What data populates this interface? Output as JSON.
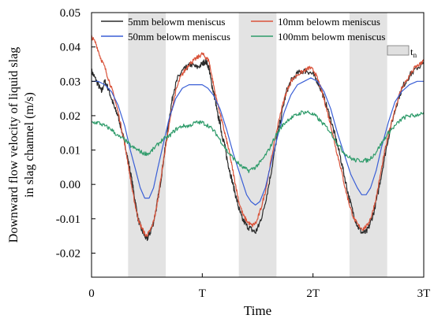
{
  "chart_data": {
    "type": "line",
    "xlabel": "Time",
    "ylabel_line1": "Downward flow velocity of liquid slag",
    "ylabel_line2": "in slag channel (m/s)",
    "x_ticks": [
      "0",
      "T",
      "2T",
      "3T"
    ],
    "y_ticks": [
      "-0.02",
      "-0.01",
      "0.00",
      "0.01",
      "0.02",
      "0.03",
      "0.04",
      "0.05"
    ],
    "xlim": [
      0,
      3
    ],
    "ylim": [
      -0.027,
      0.05
    ],
    "grid": false,
    "legend_position": "top",
    "shaded_label": "t",
    "shaded_label_sub": "n",
    "shaded_bands": [
      [
        0.33,
        0.67
      ],
      [
        1.33,
        1.67
      ],
      [
        2.33,
        2.67
      ]
    ],
    "series": [
      {
        "name": "5mm belowm meniscus",
        "color": "#2b2b2b",
        "points": [
          [
            0.0,
            0.033
          ],
          [
            0.03,
            0.031
          ],
          [
            0.06,
            0.029
          ],
          [
            0.09,
            0.027
          ],
          [
            0.12,
            0.03
          ],
          [
            0.15,
            0.028
          ],
          [
            0.18,
            0.025
          ],
          [
            0.21,
            0.022
          ],
          [
            0.24,
            0.02
          ],
          [
            0.27,
            0.016
          ],
          [
            0.3,
            0.012
          ],
          [
            0.33,
            0.007
          ],
          [
            0.36,
            0.002
          ],
          [
            0.39,
            -0.004
          ],
          [
            0.42,
            -0.01
          ],
          [
            0.45,
            -0.013
          ],
          [
            0.48,
            -0.015
          ],
          [
            0.5,
            -0.016
          ],
          [
            0.53,
            -0.014
          ],
          [
            0.56,
            -0.011
          ],
          [
            0.59,
            -0.006
          ],
          [
            0.62,
            0.0
          ],
          [
            0.65,
            0.007
          ],
          [
            0.68,
            0.014
          ],
          [
            0.71,
            0.021
          ],
          [
            0.74,
            0.027
          ],
          [
            0.78,
            0.031
          ],
          [
            0.82,
            0.033
          ],
          [
            0.86,
            0.034
          ],
          [
            0.9,
            0.035
          ],
          [
            0.95,
            0.034
          ],
          [
            1.0,
            0.035
          ],
          [
            1.03,
            0.036
          ],
          [
            1.06,
            0.034
          ],
          [
            1.08,
            0.03
          ],
          [
            1.1,
            0.027
          ],
          [
            1.12,
            0.024
          ],
          [
            1.14,
            0.02
          ],
          [
            1.16,
            0.018
          ],
          [
            1.18,
            0.014
          ],
          [
            1.2,
            0.012
          ],
          [
            1.22,
            0.008
          ],
          [
            1.24,
            0.005
          ],
          [
            1.27,
            0.001
          ],
          [
            1.3,
            -0.003
          ],
          [
            1.33,
            -0.007
          ],
          [
            1.36,
            -0.01
          ],
          [
            1.4,
            -0.012
          ],
          [
            1.44,
            -0.013
          ],
          [
            1.48,
            -0.014
          ],
          [
            1.51,
            -0.012
          ],
          [
            1.55,
            -0.008
          ],
          [
            1.59,
            -0.002
          ],
          [
            1.63,
            0.005
          ],
          [
            1.67,
            0.013
          ],
          [
            1.72,
            0.021
          ],
          [
            1.76,
            0.027
          ],
          [
            1.8,
            0.03
          ],
          [
            1.85,
            0.032
          ],
          [
            1.9,
            0.033
          ],
          [
            1.95,
            0.033
          ],
          [
            2.0,
            0.032
          ],
          [
            2.04,
            0.03
          ],
          [
            2.08,
            0.027
          ],
          [
            2.12,
            0.023
          ],
          [
            2.16,
            0.019
          ],
          [
            2.2,
            0.014
          ],
          [
            2.24,
            0.009
          ],
          [
            2.28,
            0.003
          ],
          [
            2.32,
            -0.003
          ],
          [
            2.36,
            -0.008
          ],
          [
            2.4,
            -0.012
          ],
          [
            2.44,
            -0.014
          ],
          [
            2.48,
            -0.014
          ],
          [
            2.51,
            -0.012
          ],
          [
            2.55,
            -0.008
          ],
          [
            2.59,
            -0.002
          ],
          [
            2.63,
            0.005
          ],
          [
            2.67,
            0.012
          ],
          [
            2.72,
            0.019
          ],
          [
            2.77,
            0.025
          ],
          [
            2.82,
            0.029
          ],
          [
            2.88,
            0.032
          ],
          [
            2.94,
            0.034
          ],
          [
            3.0,
            0.035
          ]
        ],
        "noise": 0.0009
      },
      {
        "name": "10mm belowm meniscus",
        "color": "#d9533a",
        "points": [
          [
            0.0,
            0.043
          ],
          [
            0.04,
            0.041
          ],
          [
            0.08,
            0.037
          ],
          [
            0.12,
            0.034
          ],
          [
            0.16,
            0.03
          ],
          [
            0.2,
            0.026
          ],
          [
            0.24,
            0.021
          ],
          [
            0.28,
            0.015
          ],
          [
            0.31,
            0.01
          ],
          [
            0.34,
            0.004
          ],
          [
            0.37,
            -0.002
          ],
          [
            0.4,
            -0.007
          ],
          [
            0.43,
            -0.011
          ],
          [
            0.46,
            -0.013
          ],
          [
            0.49,
            -0.015
          ],
          [
            0.52,
            -0.014
          ],
          [
            0.55,
            -0.012
          ],
          [
            0.58,
            -0.008
          ],
          [
            0.61,
            -0.002
          ],
          [
            0.64,
            0.005
          ],
          [
            0.68,
            0.013
          ],
          [
            0.72,
            0.021
          ],
          [
            0.76,
            0.027
          ],
          [
            0.8,
            0.031
          ],
          [
            0.84,
            0.033
          ],
          [
            0.88,
            0.035
          ],
          [
            0.92,
            0.036
          ],
          [
            0.96,
            0.037
          ],
          [
            1.0,
            0.038
          ],
          [
            1.03,
            0.037
          ],
          [
            1.06,
            0.036
          ],
          [
            1.09,
            0.031
          ],
          [
            1.12,
            0.026
          ],
          [
            1.15,
            0.022
          ],
          [
            1.18,
            0.018
          ],
          [
            1.21,
            0.014
          ],
          [
            1.24,
            0.01
          ],
          [
            1.27,
            0.005
          ],
          [
            1.3,
            0.0
          ],
          [
            1.33,
            -0.005
          ],
          [
            1.37,
            -0.009
          ],
          [
            1.41,
            -0.011
          ],
          [
            1.45,
            -0.012
          ],
          [
            1.49,
            -0.011
          ],
          [
            1.53,
            -0.007
          ],
          [
            1.57,
            -0.002
          ],
          [
            1.61,
            0.005
          ],
          [
            1.65,
            0.012
          ],
          [
            1.7,
            0.02
          ],
          [
            1.75,
            0.026
          ],
          [
            1.8,
            0.03
          ],
          [
            1.86,
            0.032
          ],
          [
            1.92,
            0.033
          ],
          [
            1.97,
            0.034
          ],
          [
            2.01,
            0.033
          ],
          [
            2.05,
            0.03
          ],
          [
            2.09,
            0.026
          ],
          [
            2.13,
            0.021
          ],
          [
            2.17,
            0.016
          ],
          [
            2.21,
            0.01
          ],
          [
            2.25,
            0.005
          ],
          [
            2.29,
            -0.001
          ],
          [
            2.33,
            -0.006
          ],
          [
            2.37,
            -0.01
          ],
          [
            2.41,
            -0.012
          ],
          [
            2.45,
            -0.013
          ],
          [
            2.49,
            -0.012
          ],
          [
            2.53,
            -0.009
          ],
          [
            2.57,
            -0.004
          ],
          [
            2.61,
            0.003
          ],
          [
            2.65,
            0.01
          ],
          [
            2.7,
            0.017
          ],
          [
            2.75,
            0.023
          ],
          [
            2.8,
            0.028
          ],
          [
            2.86,
            0.031
          ],
          [
            2.92,
            0.034
          ],
          [
            2.97,
            0.035
          ],
          [
            3.0,
            0.036
          ]
        ],
        "noise": 0.0006
      },
      {
        "name": "50mm belowm meniscus",
        "color": "#3a5fd6",
        "points": [
          [
            0.0,
            0.03
          ],
          [
            0.06,
            0.03
          ],
          [
            0.12,
            0.029
          ],
          [
            0.18,
            0.027
          ],
          [
            0.24,
            0.023
          ],
          [
            0.3,
            0.017
          ],
          [
            0.35,
            0.01
          ],
          [
            0.4,
            0.004
          ],
          [
            0.44,
            -0.001
          ],
          [
            0.48,
            -0.004
          ],
          [
            0.52,
            -0.004
          ],
          [
            0.56,
            -0.001
          ],
          [
            0.6,
            0.005
          ],
          [
            0.65,
            0.012
          ],
          [
            0.7,
            0.019
          ],
          [
            0.76,
            0.025
          ],
          [
            0.82,
            0.028
          ],
          [
            0.88,
            0.029
          ],
          [
            0.94,
            0.029
          ],
          [
            1.0,
            0.029
          ],
          [
            1.05,
            0.028
          ],
          [
            1.1,
            0.026
          ],
          [
            1.16,
            0.022
          ],
          [
            1.22,
            0.016
          ],
          [
            1.28,
            0.009
          ],
          [
            1.34,
            0.003
          ],
          [
            1.4,
            -0.003
          ],
          [
            1.44,
            -0.005
          ],
          [
            1.48,
            -0.006
          ],
          [
            1.52,
            -0.005
          ],
          [
            1.57,
            -0.001
          ],
          [
            1.62,
            0.006
          ],
          [
            1.68,
            0.014
          ],
          [
            1.74,
            0.021
          ],
          [
            1.8,
            0.026
          ],
          [
            1.86,
            0.029
          ],
          [
            1.92,
            0.03
          ],
          [
            1.98,
            0.031
          ],
          [
            2.04,
            0.03
          ],
          [
            2.1,
            0.027
          ],
          [
            2.16,
            0.022
          ],
          [
            2.22,
            0.015
          ],
          [
            2.28,
            0.009
          ],
          [
            2.34,
            0.003
          ],
          [
            2.4,
            -0.001
          ],
          [
            2.44,
            -0.003
          ],
          [
            2.48,
            -0.003
          ],
          [
            2.52,
            -0.001
          ],
          [
            2.57,
            0.004
          ],
          [
            2.62,
            0.011
          ],
          [
            2.68,
            0.018
          ],
          [
            2.74,
            0.024
          ],
          [
            2.8,
            0.027
          ],
          [
            2.87,
            0.029
          ],
          [
            2.94,
            0.03
          ],
          [
            3.0,
            0.03
          ]
        ],
        "noise": 0
      },
      {
        "name": "100mm belowm meniscus",
        "color": "#2e9b6a",
        "points": [
          [
            0.0,
            0.018
          ],
          [
            0.06,
            0.018
          ],
          [
            0.12,
            0.017
          ],
          [
            0.18,
            0.016
          ],
          [
            0.24,
            0.014
          ],
          [
            0.3,
            0.013
          ],
          [
            0.36,
            0.011
          ],
          [
            0.42,
            0.01
          ],
          [
            0.47,
            0.009
          ],
          [
            0.52,
            0.009
          ],
          [
            0.58,
            0.011
          ],
          [
            0.64,
            0.013
          ],
          [
            0.7,
            0.014
          ],
          [
            0.76,
            0.016
          ],
          [
            0.82,
            0.017
          ],
          [
            0.88,
            0.017
          ],
          [
            0.94,
            0.018
          ],
          [
            1.0,
            0.018
          ],
          [
            1.06,
            0.017
          ],
          [
            1.12,
            0.015
          ],
          [
            1.18,
            0.012
          ],
          [
            1.24,
            0.009
          ],
          [
            1.3,
            0.007
          ],
          [
            1.36,
            0.005
          ],
          [
            1.42,
            0.004
          ],
          [
            1.48,
            0.005
          ],
          [
            1.54,
            0.007
          ],
          [
            1.6,
            0.01
          ],
          [
            1.66,
            0.014
          ],
          [
            1.72,
            0.017
          ],
          [
            1.78,
            0.019
          ],
          [
            1.84,
            0.02
          ],
          [
            1.9,
            0.021
          ],
          [
            1.96,
            0.021
          ],
          [
            2.02,
            0.02
          ],
          [
            2.08,
            0.018
          ],
          [
            2.14,
            0.016
          ],
          [
            2.2,
            0.013
          ],
          [
            2.26,
            0.01
          ],
          [
            2.32,
            0.008
          ],
          [
            2.38,
            0.007
          ],
          [
            2.44,
            0.007
          ],
          [
            2.5,
            0.007
          ],
          [
            2.56,
            0.009
          ],
          [
            2.62,
            0.012
          ],
          [
            2.68,
            0.015
          ],
          [
            2.74,
            0.017
          ],
          [
            2.8,
            0.019
          ],
          [
            2.86,
            0.02
          ],
          [
            2.92,
            0.02
          ],
          [
            3.0,
            0.021
          ]
        ],
        "noise": 0.0006
      }
    ]
  }
}
